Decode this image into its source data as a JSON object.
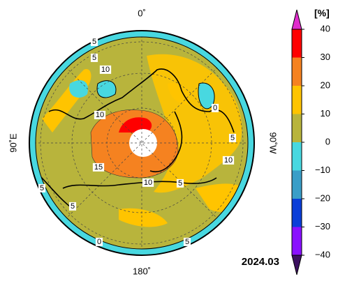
{
  "map": {
    "date": "2024.03",
    "unit": "[%]",
    "lon_labels": {
      "top": "0˚",
      "left": "90˚E",
      "right": "90˚W",
      "bottom": "180˚"
    },
    "colorbar": {
      "ticks": [
        40,
        30,
        20,
        10,
        0,
        {
          "value": -10,
          "label": "−10"
        },
        {
          "value": -20,
          "label": "−20"
        },
        {
          "value": -30,
          "label": "−30"
        },
        {
          "value": -40,
          "label": "−40"
        }
      ],
      "colors": [
        "#ff0000",
        "#f58220",
        "#ffc400",
        "#b8b43c",
        "#48d8e0",
        "#3a9ec8",
        "#0a3ed8",
        "#8a10ff"
      ],
      "over_color": "#e02ccc",
      "under_color": "#3c1060"
    },
    "contour_labels": [
      5,
      5,
      10,
      10,
      0,
      5,
      10,
      15,
      10,
      5,
      5,
      5,
      0,
      5
    ]
  }
}
